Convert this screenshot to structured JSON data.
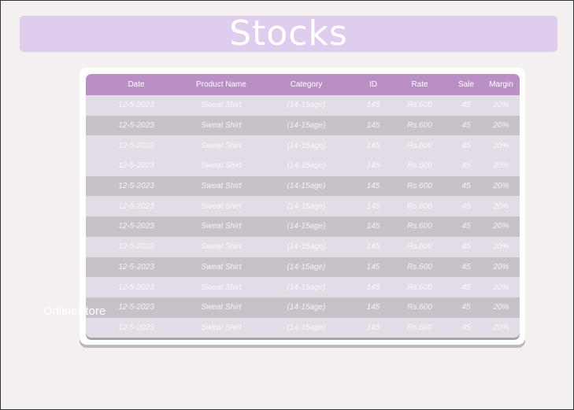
{
  "title": "Stocks",
  "brand": "OnlineStore",
  "table": {
    "columns": [
      "Date",
      "Product Name",
      "Category",
      "ID",
      "Rate",
      "Sale",
      "Margin"
    ],
    "row_shading": [
      "light",
      "dark",
      "light",
      "light",
      "dark",
      "light",
      "dark",
      "light",
      "dark",
      "light",
      "dark",
      "light"
    ],
    "rows": [
      [
        "12-5-2023",
        "Sweat Shirt",
        "(14-15age)",
        "145",
        "Rs.600",
        "45",
        "20%"
      ],
      [
        "12-5-2023",
        "Sweat Shirt",
        "(14-15age)",
        "145",
        "Rs.600",
        "45",
        "20%"
      ],
      [
        "12-5-2023",
        "Sweat Shirt",
        "(14-15age)",
        "145",
        "Rs.600",
        "45",
        "20%"
      ],
      [
        "12-5-2023",
        "Sweat Shirt",
        "(14-15age)",
        "145",
        "Rs.600",
        "45",
        "20%"
      ],
      [
        "12-5-2023",
        "Sweat Shirt",
        "(14-15age)",
        "145",
        "Rs.600",
        "45",
        "20%"
      ],
      [
        "12-5-2023",
        "Sweat Shirt",
        "(14-15age)",
        "145",
        "Rs.600",
        "45",
        "20%"
      ],
      [
        "12-5-2023",
        "Sweat Shirt",
        "(14-15age)",
        "145",
        "Rs.600",
        "45",
        "20%"
      ],
      [
        "12-5-2023",
        "Sweat Shirt",
        "(14-15age)",
        "145",
        "Rs.600",
        "45",
        "20%"
      ],
      [
        "12-5-2023",
        "Sweat Shirt",
        "(14-15age)",
        "145",
        "Rs.600",
        "45",
        "20%"
      ],
      [
        "12-5-2023",
        "Sweat Shirt",
        "(14-15age)",
        "145",
        "Rs.600",
        "45",
        "20%"
      ],
      [
        "12-5-2023",
        "Sweat Shirt",
        "(14-15age)",
        "145",
        "Rs.600",
        "45",
        "20%"
      ],
      [
        "12-5-2023",
        "Sweat Shirt",
        "(14-15age)",
        "145",
        "Rs.600",
        "45",
        "20%"
      ]
    ]
  },
  "colors": {
    "banner": "#dfcdee",
    "header": "#b98fc6",
    "row_light": "#e3dce7",
    "row_dark": "#c8c2c8",
    "background": "#f3f0ef"
  }
}
